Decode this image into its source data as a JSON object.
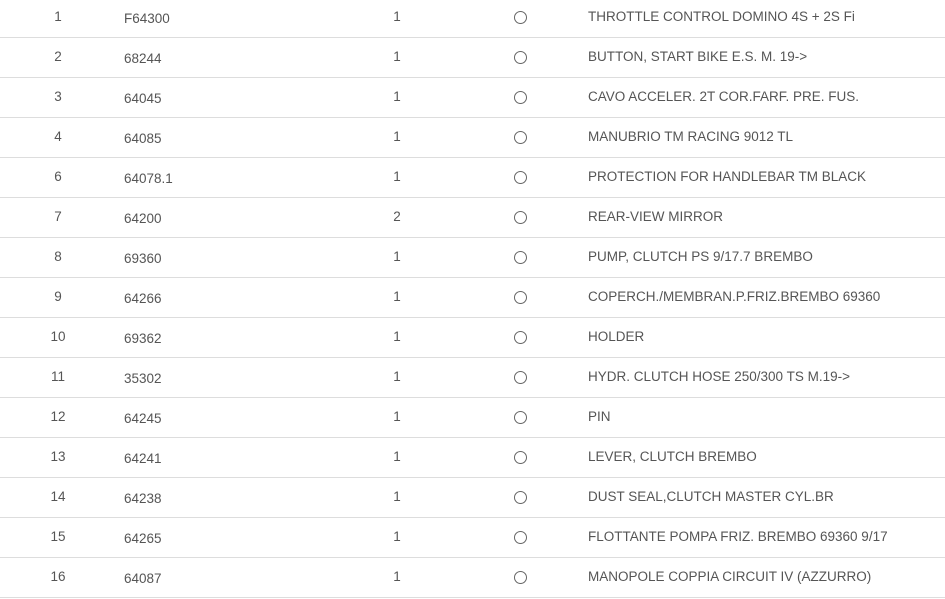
{
  "parts": [
    {
      "pos": "1",
      "code": "F64300",
      "qty": "1",
      "desc": "THROTTLE CONTROL DOMINO 4S + 2S Fi"
    },
    {
      "pos": "2",
      "code": "68244",
      "qty": "1",
      "desc": "BUTTON, START BIKE E.S. M. 19->"
    },
    {
      "pos": "3",
      "code": "64045",
      "qty": "1",
      "desc": "CAVO ACCELER. 2T COR.FARF. PRE. FUS."
    },
    {
      "pos": "4",
      "code": "64085",
      "qty": "1",
      "desc": "MANUBRIO TM RACING 9012 TL"
    },
    {
      "pos": "6",
      "code": "64078.1",
      "qty": "1",
      "desc": "PROTECTION FOR HANDLEBAR TM BLACK"
    },
    {
      "pos": "7",
      "code": "64200",
      "qty": "2",
      "desc": "REAR-VIEW MIRROR"
    },
    {
      "pos": "8",
      "code": "69360",
      "qty": "1",
      "desc": "PUMP, CLUTCH PS 9/17.7 BREMBO"
    },
    {
      "pos": "9",
      "code": "64266",
      "qty": "1",
      "desc": "COPERCH./MEMBRAN.P.FRIZ.BREMBO 69360"
    },
    {
      "pos": "10",
      "code": "69362",
      "qty": "1",
      "desc": "HOLDER"
    },
    {
      "pos": "11",
      "code": "35302",
      "qty": "1",
      "desc": "HYDR. CLUTCH HOSE 250/300 TS M.19->"
    },
    {
      "pos": "12",
      "code": "64245",
      "qty": "1",
      "desc": "PIN"
    },
    {
      "pos": "13",
      "code": "64241",
      "qty": "1",
      "desc": "LEVER, CLUTCH BREMBO"
    },
    {
      "pos": "14",
      "code": "64238",
      "qty": "1",
      "desc": "DUST SEAL,CLUTCH MASTER CYL.BR"
    },
    {
      "pos": "15",
      "code": "64265",
      "qty": "1",
      "desc": "FLOTTANTE POMPA FRIZ. BREMBO 69360 9/17"
    },
    {
      "pos": "16",
      "code": "64087",
      "qty": "1",
      "desc": "MANOPOLE COPPIA CIRCUIT IV (AZZURRO)"
    }
  ]
}
